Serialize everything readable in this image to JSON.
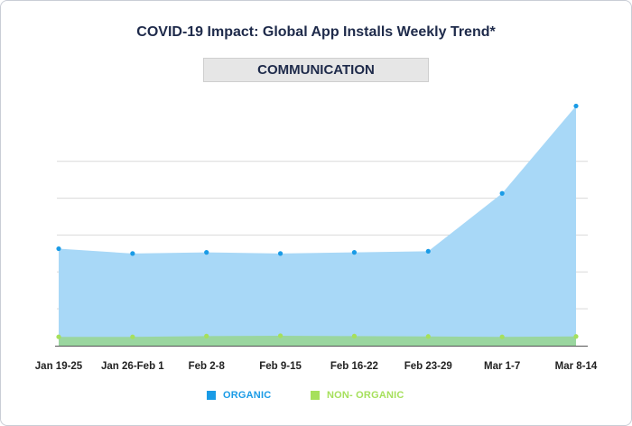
{
  "chart_data": {
    "type": "area",
    "title": "COVID-19 Impact: Global App Installs Weekly Trend*",
    "subtitle": "COMMUNICATION",
    "categories": [
      "Jan 19-25",
      "Jan 26-Feb 1",
      "Feb 2-8",
      "Feb 9-15",
      "Feb 16-22",
      "Feb 23-29",
      "Mar 1-7",
      "Mar 8-14"
    ],
    "series": [
      {
        "name": "ORGANIC",
        "values": [
          26.3,
          25.0,
          25.3,
          25.0,
          25.3,
          25.6,
          41.3,
          65.0
        ],
        "color": "#1a9be6",
        "fill": "#a8d8f7"
      },
      {
        "name": "NON- ORGANIC",
        "values": [
          2.4,
          2.4,
          2.6,
          2.7,
          2.6,
          2.5,
          2.4,
          2.5
        ],
        "color": "#a6e05c",
        "fill": "#99d69a"
      }
    ],
    "ylim": [
      0,
      70
    ],
    "yticks": [
      0,
      10,
      20,
      30,
      40,
      50
    ],
    "grid": true,
    "legend": "bottom-center"
  }
}
